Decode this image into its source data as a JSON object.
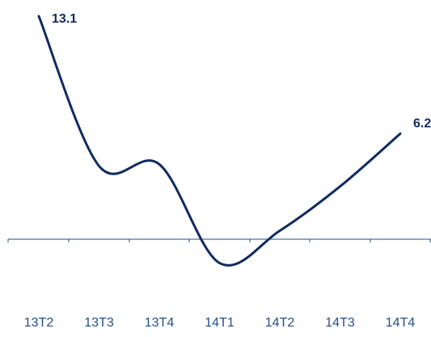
{
  "chart_data": {
    "type": "line",
    "categories": [
      "13T2",
      "13T3",
      "13T4",
      "14T1",
      "14T2",
      "14T3",
      "14T4"
    ],
    "series": [
      {
        "values": [
          13.1,
          4.3,
          4.4,
          -1.4,
          0.5,
          3.1,
          6.2
        ]
      }
    ],
    "data_labels": [
      {
        "index": 0,
        "text": "13.1"
      },
      {
        "index": 6,
        "text": "6.2"
      }
    ],
    "ylim": [
      -4.5,
      14.5
    ],
    "grid": false,
    "legend": "none",
    "colors": {
      "line": "#0f2a5f",
      "axis": "#1f4e8c",
      "tick_text": "#1f4e8c",
      "label_text": "#0f2a5f"
    }
  }
}
